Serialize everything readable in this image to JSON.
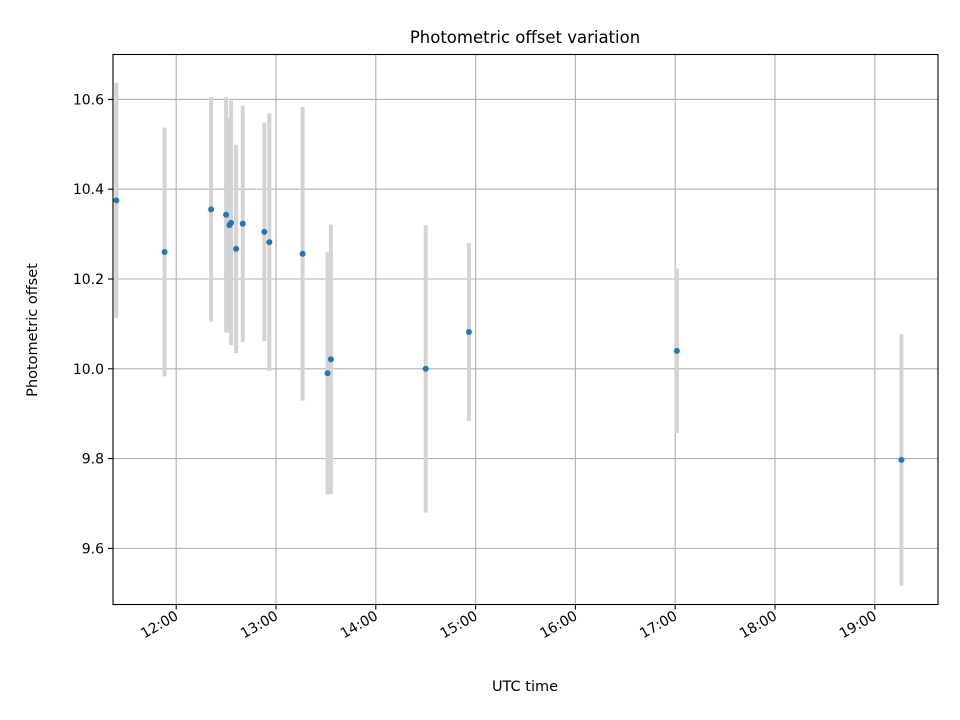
{
  "chart_data": {
    "type": "scatter",
    "title": "Photometric offset variation",
    "xlabel": "UTC time",
    "ylabel": "Photometric offset",
    "xlim": [
      "11:22",
      "19:38"
    ],
    "ylim": [
      9.475,
      10.7
    ],
    "grid": true,
    "x_ticks": [
      "12:00",
      "13:00",
      "14:00",
      "15:00",
      "16:00",
      "17:00",
      "18:00",
      "19:00"
    ],
    "y_ticks": [
      "9.6",
      "9.8",
      "10.0",
      "10.2",
      "10.4",
      "10.6"
    ],
    "colors": {
      "point": "#1f77b4",
      "errorbar": "#d3d3d3",
      "grid": "#b0b0b0"
    },
    "points": [
      {
        "x": "11:24",
        "y": 10.375,
        "err": 0.262
      },
      {
        "x": "11:53",
        "y": 10.26,
        "err": 0.277
      },
      {
        "x": "12:21",
        "y": 10.355,
        "err": 0.25
      },
      {
        "x": "12:30",
        "y": 10.343,
        "err": 0.262
      },
      {
        "x": "12:32",
        "y": 10.32,
        "err": 0.24
      },
      {
        "x": "12:33",
        "y": 10.325,
        "err": 0.272
      },
      {
        "x": "12:36",
        "y": 10.267,
        "err": 0.232
      },
      {
        "x": "12:40",
        "y": 10.323,
        "err": 0.263
      },
      {
        "x": "12:53",
        "y": 10.305,
        "err": 0.243
      },
      {
        "x": "12:56",
        "y": 10.282,
        "err": 0.287
      },
      {
        "x": "13:16",
        "y": 10.256,
        "err": 0.327
      },
      {
        "x": "13:31",
        "y": 9.99,
        "err": 0.27
      },
      {
        "x": "13:33",
        "y": 10.021,
        "err": 0.3
      },
      {
        "x": "14:30",
        "y": 10.0,
        "err": 0.32
      },
      {
        "x": "14:56",
        "y": 10.082,
        "err": 0.198
      },
      {
        "x": "17:01",
        "y": 10.04,
        "err": 0.183
      },
      {
        "x": "19:16",
        "y": 9.797,
        "err": 0.28
      }
    ]
  }
}
